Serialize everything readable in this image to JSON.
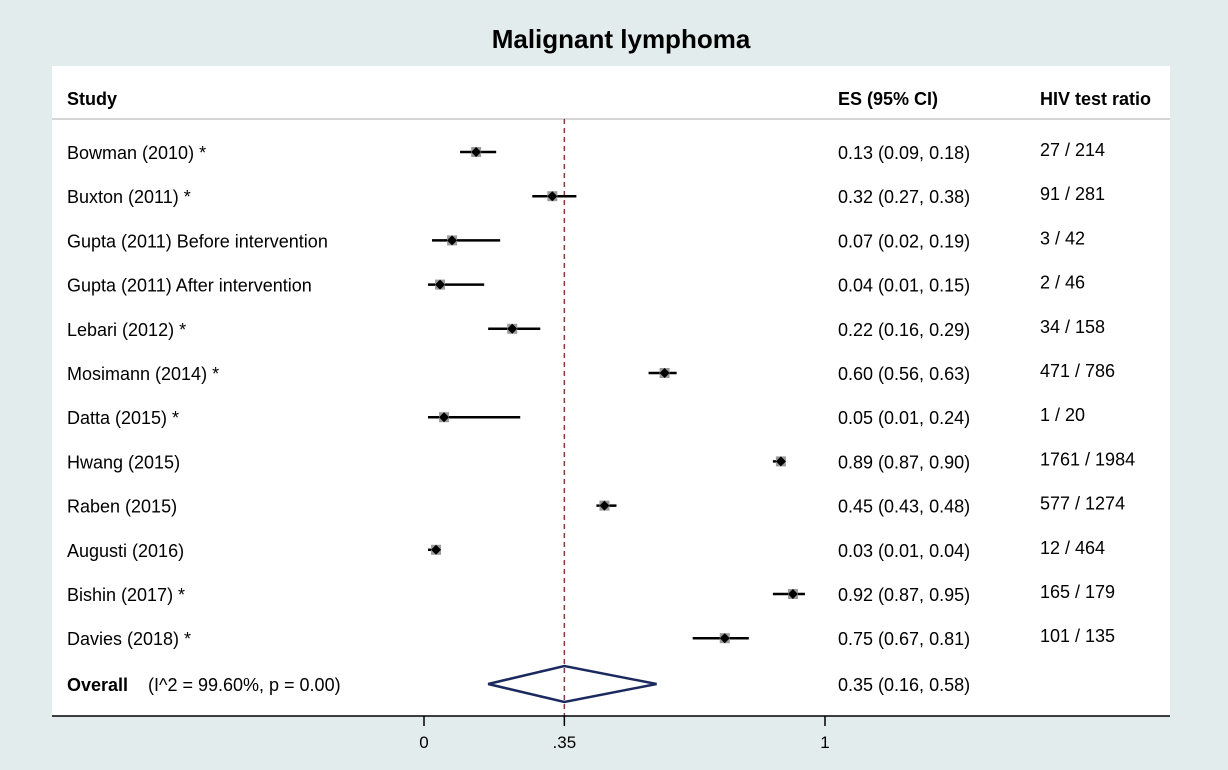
{
  "chart_data": {
    "type": "forest",
    "title": "Malignant lymphoma",
    "headers": {
      "study": "Study",
      "es": "ES (95% CI)",
      "ratio": "HIV test ratio"
    },
    "xlim": [
      0,
      1
    ],
    "reference_line": 0.35,
    "x_ticks": [
      {
        "value": 0,
        "label": "0"
      },
      {
        "value": 0.35,
        "label": ".35"
      },
      {
        "value": 1,
        "label": "1"
      }
    ],
    "studies": [
      {
        "label": "Bowman (2010) *",
        "es": 0.13,
        "lo": 0.09,
        "hi": 0.18,
        "es_text": "0.13 (0.09, 0.18)",
        "ratio": "27 / 214"
      },
      {
        "label": "Buxton (2011) *",
        "es": 0.32,
        "lo": 0.27,
        "hi": 0.38,
        "es_text": "0.32 (0.27, 0.38)",
        "ratio": "91 / 281"
      },
      {
        "label": "Gupta (2011) Before intervention",
        "es": 0.07,
        "lo": 0.02,
        "hi": 0.19,
        "es_text": "0.07 (0.02, 0.19)",
        "ratio": "3 / 42"
      },
      {
        "label": "Gupta (2011) After intervention",
        "es": 0.04,
        "lo": 0.01,
        "hi": 0.15,
        "es_text": "0.04 (0.01, 0.15)",
        "ratio": "2 / 46"
      },
      {
        "label": "Lebari (2012) *",
        "es": 0.22,
        "lo": 0.16,
        "hi": 0.29,
        "es_text": "0.22 (0.16, 0.29)",
        "ratio": "34 / 158"
      },
      {
        "label": "Mosimann (2014) *",
        "es": 0.6,
        "lo": 0.56,
        "hi": 0.63,
        "es_text": "0.60 (0.56, 0.63)",
        "ratio": "471 / 786"
      },
      {
        "label": "Datta (2015) *",
        "es": 0.05,
        "lo": 0.01,
        "hi": 0.24,
        "es_text": "0.05 (0.01, 0.24)",
        "ratio": "1 / 20"
      },
      {
        "label": "Hwang (2015)",
        "es": 0.89,
        "lo": 0.87,
        "hi": 0.9,
        "es_text": "0.89 (0.87, 0.90)",
        "ratio": "1761 / 1984"
      },
      {
        "label": "Raben (2015)",
        "es": 0.45,
        "lo": 0.43,
        "hi": 0.48,
        "es_text": "0.45 (0.43, 0.48)",
        "ratio": "577 / 1274"
      },
      {
        "label": "Augusti (2016)",
        "es": 0.03,
        "lo": 0.01,
        "hi": 0.04,
        "es_text": "0.03 (0.01, 0.04)",
        "ratio": "12 / 464"
      },
      {
        "label": "Bishin (2017) *",
        "es": 0.92,
        "lo": 0.87,
        "hi": 0.95,
        "es_text": "0.92 (0.87, 0.95)",
        "ratio": "165 / 179"
      },
      {
        "label": "Davies (2018) *",
        "es": 0.75,
        "lo": 0.67,
        "hi": 0.81,
        "es_text": "0.75 (0.67, 0.81)",
        "ratio": "101 / 135"
      }
    ],
    "overall": {
      "label": "Overall",
      "stats": "(I^2 = 99.60%, p = 0.00)",
      "es": 0.35,
      "lo": 0.16,
      "hi": 0.58,
      "es_text": "0.35 (0.16, 0.58)"
    },
    "colors": {
      "outer_background": "#e3ecec",
      "plot_background": "#ffffff",
      "diamond": "#1a2a5e",
      "reference_line": "#8b3a3a",
      "marks": "#000000"
    }
  }
}
